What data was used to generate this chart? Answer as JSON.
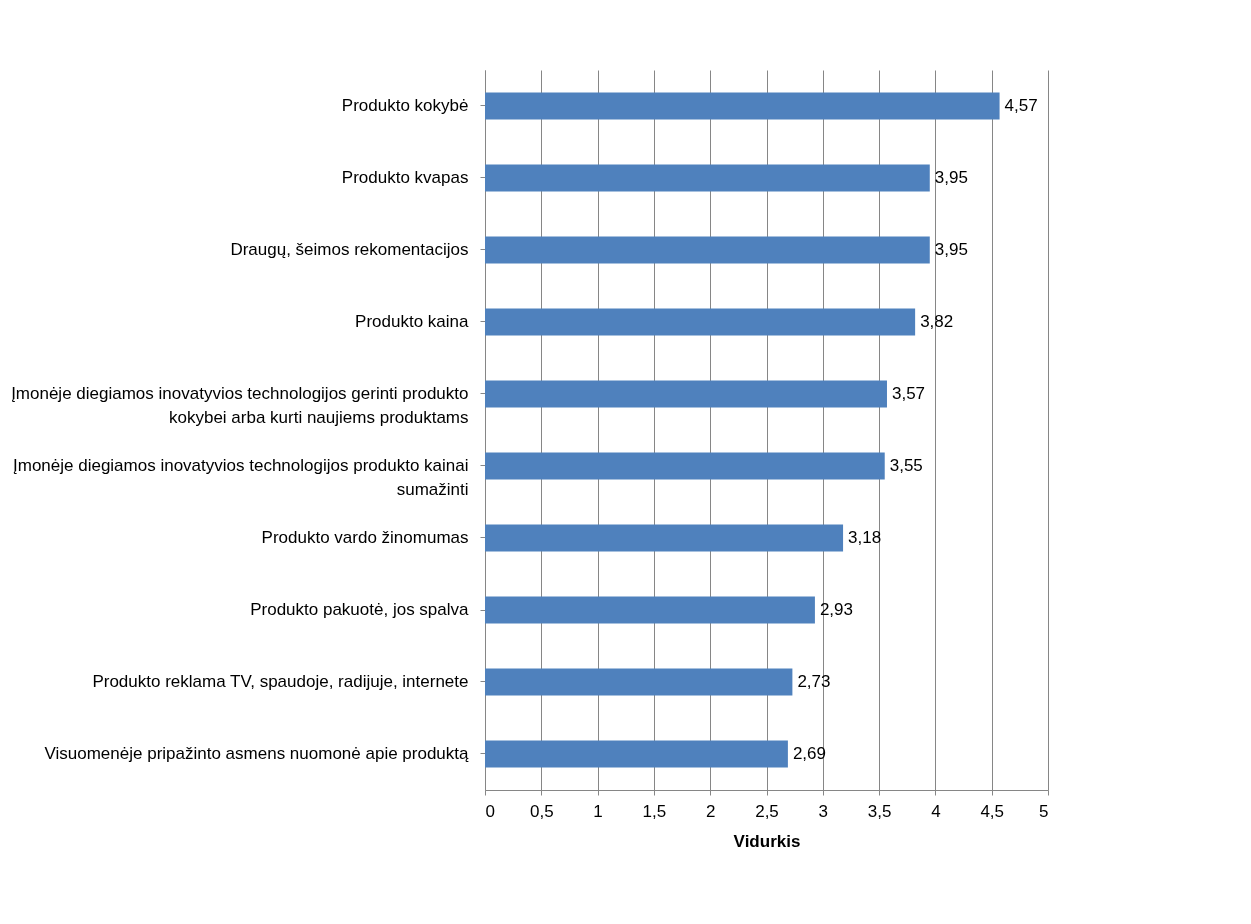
{
  "chart_data": {
    "type": "bar",
    "orientation": "horizontal",
    "xlabel": "Vidurkis",
    "categories": [
      "Produkto kokybė",
      "Produkto kvapas",
      "Draugų, šeimos rekomentacijos",
      "Produkto kaina",
      "Įmonėje diegiamos inovatyvios technologijos gerinti produkto kokybei arba kurti naujiems produktams",
      "Įmonėje diegiamos inovatyvios technologijos produkto kainai sumažinti",
      "Produkto vardo žinomumas",
      "Produkto pakuotė, jos spalva",
      "Produkto reklama TV, spaudoje, radijuje, internete",
      "Visuomenėje pripažinto asmens nuomonė apie produktą"
    ],
    "values": [
      4.57,
      3.95,
      3.95,
      3.82,
      3.57,
      3.55,
      3.18,
      2.93,
      2.73,
      2.69
    ],
    "value_labels": [
      "4,57",
      "3,95",
      "3,95",
      "3,82",
      "3,57",
      "3,55",
      "3,18",
      "2,93",
      "2,73",
      "2,69"
    ],
    "color": "#4f81bd",
    "xlim": [
      0,
      5
    ],
    "xticks": [
      0,
      {
        "value": 0.5,
        "label": "0,5"
      },
      1,
      {
        "value": 1.5,
        "label": "1,5"
      },
      2,
      {
        "value": 2.5,
        "label": "2,5"
      },
      3,
      {
        "value": 3.5,
        "label": "3,5"
      },
      4,
      {
        "value": 4.5,
        "label": "4,5"
      },
      5
    ],
    "grid": "x"
  }
}
